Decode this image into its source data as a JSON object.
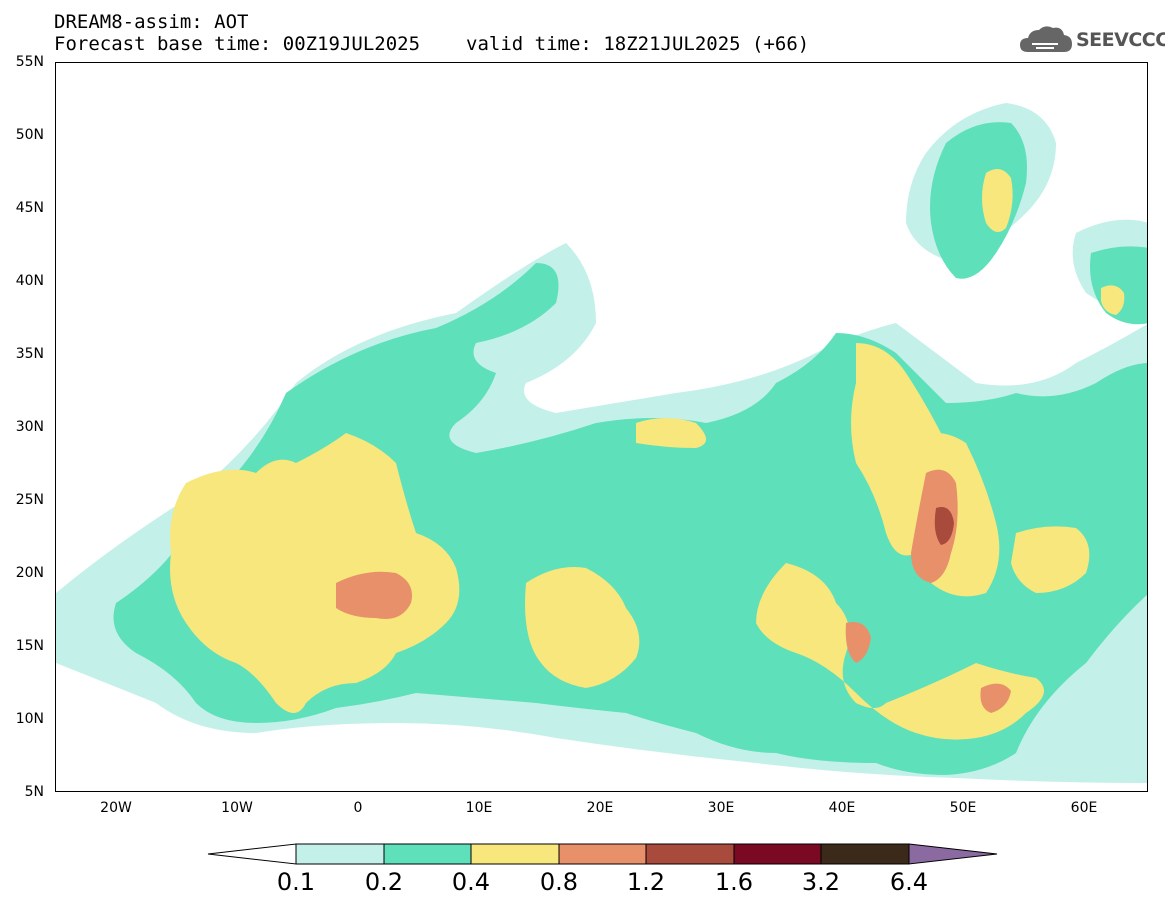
{
  "header": {
    "line1": "DREAM8-assim: AOT",
    "base_time": "Forecast base time: 00Z19JUL2025",
    "valid_time": "valid time: 18Z21JUL2025 (+66)"
  },
  "logo": {
    "text": "SEEVCCC",
    "icon": "cloud-icon"
  },
  "map": {
    "lat_labels": [
      "55N",
      "50N",
      "45N",
      "40N",
      "35N",
      "30N",
      "25N",
      "20N",
      "15N",
      "10N",
      "5N"
    ],
    "lon_labels": [
      "20W",
      "10W",
      "0",
      "10E",
      "20E",
      "30E",
      "40E",
      "50E",
      "60E"
    ]
  },
  "colorbar": {
    "labels": [
      "0.1",
      "0.2",
      "0.4",
      "0.8",
      "1.2",
      "1.6",
      "3.2",
      "6.4"
    ],
    "colors": [
      "#ffffff",
      "#c4f0ea",
      "#5ee0bb",
      "#f7e77c",
      "#e8906a",
      "#a84a3c",
      "#7a0a24",
      "#3b2a1a",
      "#8a6aa0"
    ]
  }
}
